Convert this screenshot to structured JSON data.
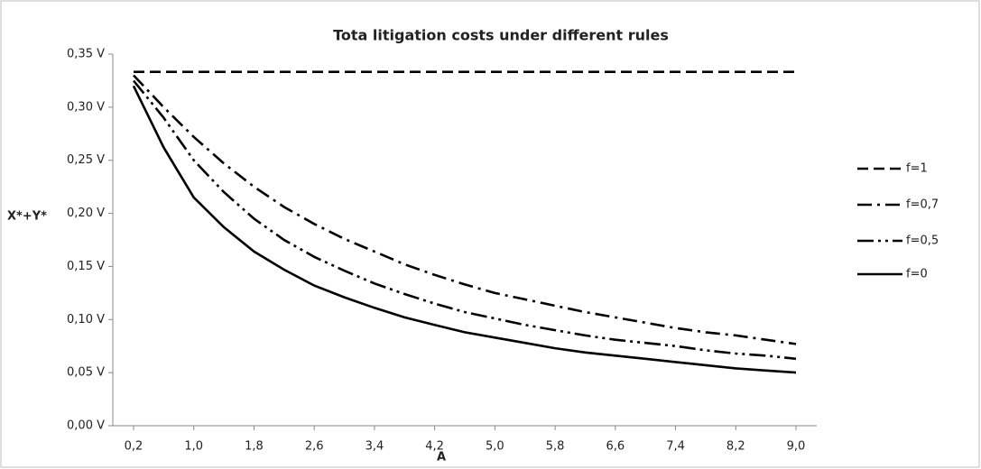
{
  "chart_data": {
    "type": "line",
    "title": "Tota litigation costs under different rules",
    "x_label": "A",
    "y_label": "X*+Y*",
    "x": [
      0.2,
      0.6,
      1.0,
      1.4,
      1.8,
      2.2,
      2.6,
      3.0,
      3.4,
      3.8,
      4.2,
      4.6,
      5.0,
      5.4,
      5.8,
      6.2,
      6.6,
      7.0,
      7.4,
      7.8,
      8.2,
      8.6,
      9.0
    ],
    "series": [
      {
        "name": "f=1",
        "color": "#000000",
        "dash": "dash",
        "values": [
          0.3333,
          0.3333,
          0.3333,
          0.3333,
          0.3333,
          0.3333,
          0.3333,
          0.3333,
          0.3333,
          0.3333,
          0.3333,
          0.3333,
          0.3333,
          0.3333,
          0.3333,
          0.3333,
          0.3333,
          0.3333,
          0.3333,
          0.3333,
          0.3333,
          0.3333,
          0.3333
        ]
      },
      {
        "name": "f=0,7",
        "color": "#000000",
        "dash": "dash-dot",
        "values": [
          0.33,
          0.3,
          0.272,
          0.247,
          0.225,
          0.206,
          0.19,
          0.176,
          0.164,
          0.152,
          0.142,
          0.133,
          0.125,
          0.119,
          0.113,
          0.107,
          0.102,
          0.097,
          0.092,
          0.088,
          0.085,
          0.081,
          0.077
        ]
      },
      {
        "name": "f=0,5",
        "color": "#000000",
        "dash": "dash-dot-dot",
        "values": [
          0.325,
          0.29,
          0.25,
          0.22,
          0.195,
          0.175,
          0.159,
          0.146,
          0.134,
          0.124,
          0.115,
          0.107,
          0.101,
          0.095,
          0.09,
          0.085,
          0.081,
          0.078,
          0.075,
          0.071,
          0.068,
          0.066,
          0.063
        ]
      },
      {
        "name": "f=0",
        "color": "#000000",
        "dash": "solid",
        "values": [
          0.32,
          0.262,
          0.215,
          0.187,
          0.164,
          0.147,
          0.132,
          0.121,
          0.111,
          0.102,
          0.095,
          0.088,
          0.083,
          0.078,
          0.073,
          0.069,
          0.066,
          0.063,
          0.06,
          0.057,
          0.054,
          0.052,
          0.05
        ]
      }
    ],
    "xlim": [
      0.2,
      9.0
    ],
    "xticks": [
      {
        "value": 0.2,
        "label": "0,2"
      },
      {
        "value": 1.0,
        "label": "1,0"
      },
      {
        "value": 1.8,
        "label": "1,8"
      },
      {
        "value": 2.6,
        "label": "2,6"
      },
      {
        "value": 3.4,
        "label": "3,4"
      },
      {
        "value": 4.2,
        "label": "4,2"
      },
      {
        "value": 5.0,
        "label": "5,0"
      },
      {
        "value": 5.8,
        "label": "5,8"
      },
      {
        "value": 6.6,
        "label": "6,6"
      },
      {
        "value": 7.4,
        "label": "7,4"
      },
      {
        "value": 8.2,
        "label": "8,2"
      },
      {
        "value": 9.0,
        "label": "9,0"
      }
    ],
    "ylim": [
      0,
      0.35
    ],
    "yticks": [
      {
        "value": 0,
        "label": "0,00 V"
      },
      {
        "value": 0.05,
        "label": "0,05 V"
      },
      {
        "value": 0.1,
        "label": "0,10 V"
      },
      {
        "value": 0.15,
        "label": "0,15 V"
      },
      {
        "value": 0.2,
        "label": "0,20 V"
      },
      {
        "value": 0.25,
        "label": "0,25 V"
      },
      {
        "value": 0.3,
        "label": "0,30 V"
      },
      {
        "value": 0.35,
        "label": "0,35 V"
      }
    ],
    "grid": false,
    "legend": "right"
  }
}
